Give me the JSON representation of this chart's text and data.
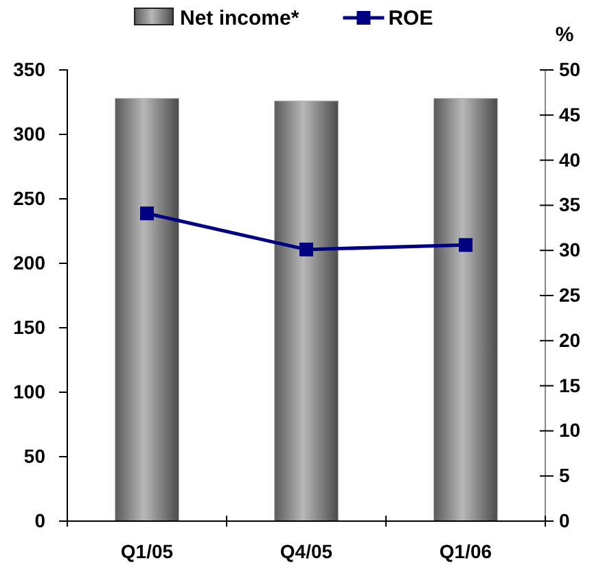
{
  "chart_data": {
    "type": "bar",
    "categories": [
      "Q1/05",
      "Q4/05",
      "Q1/06"
    ],
    "y2label": "%",
    "series": [
      {
        "name": "Net income*",
        "color": "#b8b8b8",
        "values": [
          328,
          326,
          328
        ]
      },
      {
        "name": "ROE",
        "type": "line",
        "axis": "y2",
        "color": "#000080",
        "values": [
          34.1,
          30.1,
          30.6
        ]
      }
    ],
    "ylim": [
      0,
      350
    ],
    "yticks": [
      0,
      50,
      100,
      150,
      200,
      250,
      300,
      350
    ],
    "y2lim": [
      0,
      50
    ],
    "y2ticks": [
      0,
      5,
      10,
      15,
      20,
      25,
      30,
      35,
      40,
      45,
      50
    ],
    "legend": "top",
    "marker": "square",
    "grid": false
  }
}
